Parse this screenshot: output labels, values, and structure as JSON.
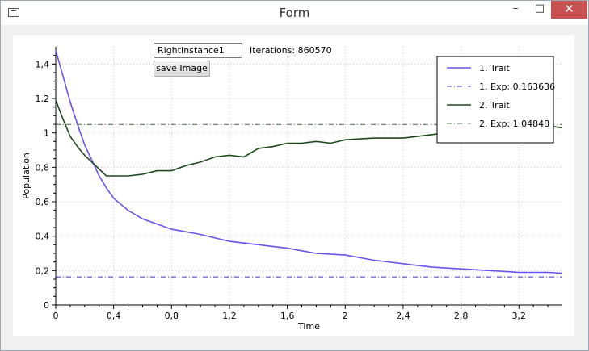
{
  "window": {
    "title": "Form",
    "minimize_glyph": "–",
    "maximize_glyph": "□",
    "close_glyph": "✕"
  },
  "controls": {
    "instance_name": "RightInstance1",
    "iterations_label": "Iterations: 860570",
    "save_button_label": "save Image"
  },
  "chart_data": {
    "type": "line",
    "title": "",
    "xlabel": "Time",
    "ylabel": "Population",
    "xlim": [
      0,
      3.5
    ],
    "ylim": [
      0,
      1.5
    ],
    "x_ticks": [
      "0",
      "0,4",
      "0,8",
      "1,2",
      "1,6",
      "2",
      "2,4",
      "2,8",
      "3,2"
    ],
    "y_ticks": [
      "0",
      "0,2",
      "0,4",
      "0,6",
      "0,8",
      "1",
      "1,2",
      "1,4"
    ],
    "grid": true,
    "legend_position": "top-right",
    "series": [
      {
        "name": "1. Trait",
        "color": "#6655ee",
        "style": "solid",
        "x": [
          0,
          0.05,
          0.1,
          0.15,
          0.2,
          0.25,
          0.3,
          0.35,
          0.4,
          0.5,
          0.6,
          0.8,
          1.0,
          1.2,
          1.4,
          1.6,
          1.8,
          2.0,
          2.2,
          2.4,
          2.6,
          2.8,
          3.0,
          3.2,
          3.4,
          3.5
        ],
        "y": [
          1.48,
          1.33,
          1.18,
          1.05,
          0.93,
          0.84,
          0.75,
          0.68,
          0.62,
          0.55,
          0.5,
          0.44,
          0.41,
          0.37,
          0.35,
          0.33,
          0.3,
          0.29,
          0.26,
          0.24,
          0.22,
          0.21,
          0.2,
          0.19,
          0.19,
          0.185
        ]
      },
      {
        "name": "1. Exp: 0.163636",
        "color": "#3333cc",
        "style": "dashdot",
        "x": [
          0,
          3.5
        ],
        "y": [
          0.163636,
          0.163636
        ]
      },
      {
        "name": "2. Trait",
        "color": "#1e4a1e",
        "style": "solid",
        "x": [
          0,
          0.05,
          0.1,
          0.15,
          0.2,
          0.25,
          0.3,
          0.35,
          0.4,
          0.5,
          0.6,
          0.7,
          0.8,
          0.9,
          1.0,
          1.1,
          1.2,
          1.3,
          1.4,
          1.5,
          1.6,
          1.7,
          1.8,
          1.9,
          2.0,
          2.2,
          2.4,
          2.6,
          2.8,
          3.0,
          3.2,
          3.4,
          3.5
        ],
        "y": [
          1.19,
          1.08,
          0.98,
          0.92,
          0.87,
          0.83,
          0.79,
          0.75,
          0.75,
          0.75,
          0.76,
          0.78,
          0.78,
          0.81,
          0.83,
          0.86,
          0.87,
          0.86,
          0.91,
          0.92,
          0.94,
          0.94,
          0.95,
          0.94,
          0.96,
          0.97,
          0.97,
          0.99,
          1.01,
          1.02,
          1.03,
          1.04,
          1.03
        ]
      },
      {
        "name": "2. Exp: 1.04848",
        "color": "#3a6e3a",
        "style": "dashdot",
        "x": [
          0,
          3.5
        ],
        "y": [
          1.04848,
          1.04848
        ]
      }
    ]
  }
}
